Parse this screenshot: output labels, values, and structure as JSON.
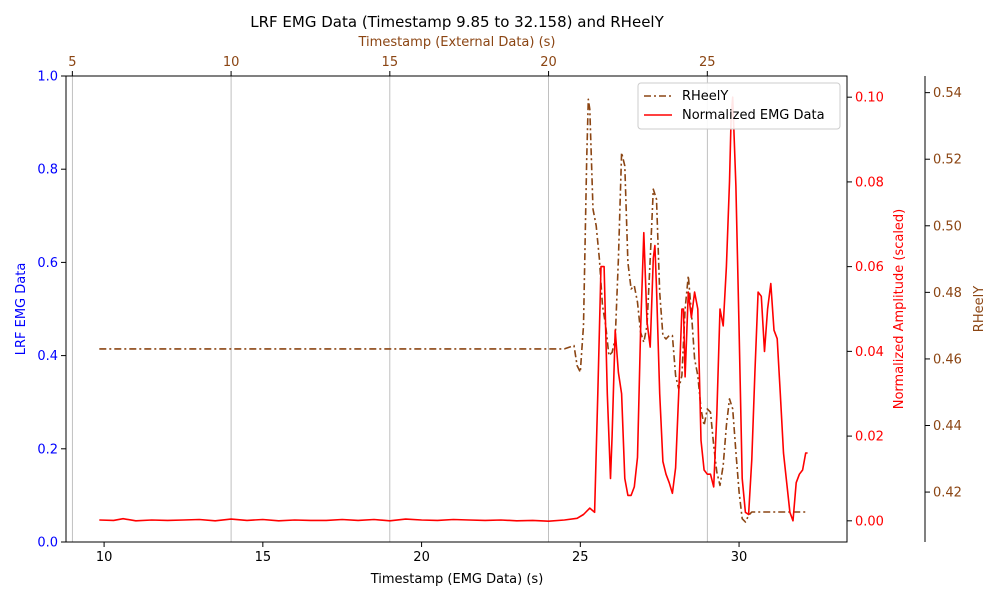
{
  "chart_data": {
    "type": "line",
    "title": "LRF EMG Data (Timestamp 9.85 to 32.158) and RHeelY",
    "xlabel_bottom": "Timestamp (EMG Data) (s)",
    "xlabel_top": "Timestamp (External Data) (s)",
    "ylabel_left": "LRF EMG Data",
    "ylabel_right_1": "Normalized Amplitude (scaled)",
    "ylabel_right_2": "RHeelY",
    "axes": {
      "x_bottom": {
        "min": 8.8,
        "max": 33.4,
        "ticks": [
          10,
          15,
          20,
          25,
          30
        ]
      },
      "x_top": {
        "min": 4.8,
        "max": 29.4,
        "ticks": [
          5,
          10,
          15,
          20,
          25
        ],
        "gridlines": [
          5,
          10,
          15,
          20,
          25
        ]
      },
      "y_left": {
        "min": 0.0,
        "max": 1.0,
        "ticks": [
          "0.0",
          "0.2",
          "0.4",
          "0.6",
          "0.8",
          "1.0"
        ]
      },
      "y_right_1": {
        "min": -0.005,
        "max": 0.105,
        "ticks": [
          "0.00",
          "0.02",
          "0.04",
          "0.06",
          "0.08",
          "0.10"
        ]
      },
      "y_right_2": {
        "min": 0.405,
        "max": 0.545,
        "ticks": [
          "0.42",
          "0.44",
          "0.46",
          "0.48",
          "0.50",
          "0.52",
          "0.54"
        ]
      }
    },
    "legend": {
      "position": "top-right",
      "entries": [
        {
          "label": "RHeelY",
          "color": "#8B4513",
          "style": "dashdot"
        },
        {
          "label": "Normalized EMG Data",
          "color": "#ff0000",
          "style": "solid"
        }
      ]
    },
    "colors": {
      "left_axis": "#0000ff",
      "right_axis_1": "#ff0000",
      "right_axis_2": "#8B4513",
      "top_axis": "#8B4513",
      "grid": "#b0b0b0"
    },
    "series": [
      {
        "name": "RHeelY",
        "axis": "y_right_2",
        "x": [
          9.85,
          12.0,
          15.0,
          18.0,
          20.0,
          22.0,
          24.0,
          24.5,
          24.8,
          24.9,
          25.0,
          25.1,
          25.2,
          25.25,
          25.3,
          25.4,
          25.5,
          25.6,
          25.7,
          25.8,
          25.9,
          26.0,
          26.1,
          26.2,
          26.3,
          26.4,
          26.5,
          26.6,
          26.7,
          26.8,
          26.9,
          27.0,
          27.1,
          27.2,
          27.3,
          27.4,
          27.5,
          27.6,
          27.7,
          27.8,
          27.9,
          28.0,
          28.1,
          28.2,
          28.3,
          28.4,
          28.5,
          28.6,
          28.7,
          28.8,
          28.9,
          29.0,
          29.1,
          29.2,
          29.3,
          29.4,
          29.5,
          29.6,
          29.7,
          29.8,
          29.9,
          30.0,
          30.1,
          30.2,
          30.3,
          30.4,
          30.6,
          31.0,
          31.5,
          32.158
        ],
        "values": [
          0.463,
          0.463,
          0.463,
          0.463,
          0.463,
          0.463,
          0.463,
          0.463,
          0.464,
          0.458,
          0.456,
          0.47,
          0.52,
          0.538,
          0.535,
          0.505,
          0.5,
          0.49,
          0.476,
          0.47,
          0.461,
          0.462,
          0.466,
          0.49,
          0.522,
          0.518,
          0.489,
          0.481,
          0.482,
          0.477,
          0.468,
          0.465,
          0.47,
          0.49,
          0.511,
          0.508,
          0.48,
          0.467,
          0.466,
          0.467,
          0.467,
          0.455,
          0.451,
          0.455,
          0.475,
          0.485,
          0.474,
          0.46,
          0.455,
          0.445,
          0.44,
          0.445,
          0.444,
          0.434,
          0.426,
          0.422,
          0.428,
          0.44,
          0.448,
          0.445,
          0.432,
          0.42,
          0.412,
          0.411,
          0.413,
          0.414,
          0.414,
          0.414,
          0.414,
          0.414
        ]
      },
      {
        "name": "Normalized EMG Data",
        "axis": "y_right_1",
        "x": [
          9.85,
          10.3,
          10.6,
          11.0,
          11.5,
          12.0,
          12.5,
          13.0,
          13.5,
          14.0,
          14.5,
          15.0,
          15.5,
          16.0,
          16.5,
          17.0,
          17.5,
          18.0,
          18.5,
          19.0,
          19.5,
          20.0,
          20.5,
          21.0,
          21.5,
          22.0,
          22.5,
          23.0,
          23.5,
          24.0,
          24.5,
          24.9,
          25.1,
          25.3,
          25.45,
          25.55,
          25.65,
          25.75,
          25.85,
          25.95,
          26.0,
          26.1,
          26.2,
          26.3,
          26.4,
          26.5,
          26.6,
          26.7,
          26.8,
          26.9,
          27.0,
          27.1,
          27.2,
          27.3,
          27.35,
          27.4,
          27.5,
          27.6,
          27.7,
          27.8,
          27.9,
          28.0,
          28.1,
          28.2,
          28.25,
          28.3,
          28.4,
          28.5,
          28.6,
          28.7,
          28.8,
          28.9,
          29.0,
          29.1,
          29.2,
          29.3,
          29.4,
          29.5,
          29.6,
          29.7,
          29.75,
          29.8,
          29.9,
          30.0,
          30.1,
          30.2,
          30.3,
          30.4,
          30.5,
          30.6,
          30.7,
          30.8,
          30.9,
          31.0,
          31.1,
          31.2,
          31.3,
          31.4,
          31.5,
          31.6,
          31.7,
          31.8,
          31.9,
          32.0,
          32.1,
          32.158
        ],
        "values": [
          0.0002,
          0.0001,
          0.0005,
          0.0,
          0.0002,
          0.0001,
          0.0002,
          0.0003,
          0.0,
          0.0004,
          0.0001,
          0.0003,
          0.0,
          0.0002,
          0.0001,
          0.0001,
          0.0003,
          0.0001,
          0.0003,
          0.0,
          0.0004,
          0.0002,
          0.0001,
          0.0003,
          0.0002,
          0.0001,
          0.0002,
          0.0,
          0.0001,
          -0.0001,
          0.0002,
          0.0006,
          0.0015,
          0.003,
          0.002,
          0.03,
          0.06,
          0.06,
          0.03,
          0.01,
          0.02,
          0.045,
          0.035,
          0.03,
          0.01,
          0.006,
          0.006,
          0.008,
          0.015,
          0.045,
          0.068,
          0.047,
          0.041,
          0.062,
          0.065,
          0.055,
          0.03,
          0.014,
          0.011,
          0.009,
          0.0065,
          0.0125,
          0.03,
          0.05,
          0.05,
          0.034,
          0.054,
          0.048,
          0.054,
          0.05,
          0.019,
          0.012,
          0.011,
          0.011,
          0.008,
          0.025,
          0.05,
          0.046,
          0.06,
          0.08,
          0.095,
          0.1,
          0.079,
          0.045,
          0.01,
          0.002,
          0.0015,
          0.0145,
          0.035,
          0.054,
          0.053,
          0.04,
          0.05,
          0.056,
          0.045,
          0.043,
          0.03,
          0.016,
          0.009,
          0.002,
          0.0,
          0.009,
          0.011,
          0.012,
          0.016,
          0.016
        ]
      }
    ]
  }
}
